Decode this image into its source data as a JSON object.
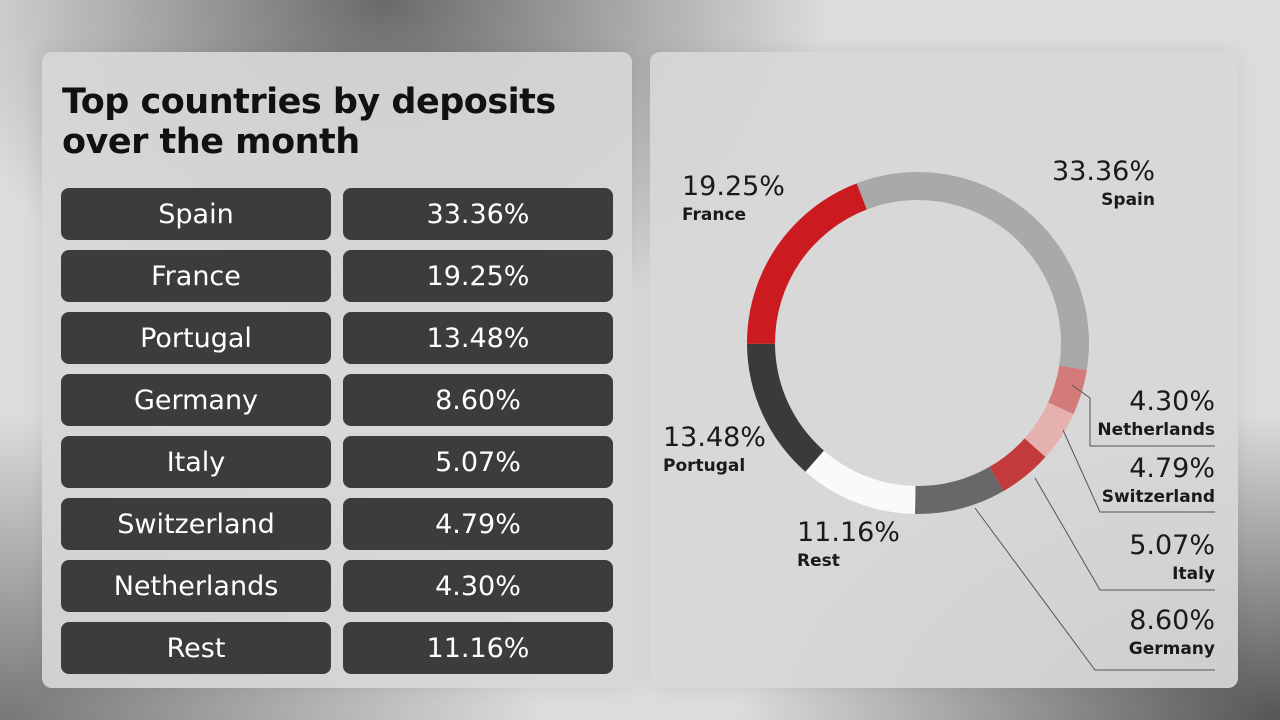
{
  "title": "Top countries by deposits over the month",
  "table": {
    "rows": [
      [
        "Spain",
        "33.36%"
      ],
      [
        "France",
        "19.25%"
      ],
      [
        "Portugal",
        "13.48%"
      ],
      [
        "Germany",
        "8.60%"
      ],
      [
        "Italy",
        "5.07%"
      ],
      [
        "Switzerland",
        "4.79%"
      ],
      [
        "Netherlands",
        "4.30%"
      ],
      [
        "Rest",
        "11.16%"
      ]
    ]
  },
  "chart_data": {
    "type": "donut",
    "categories": [
      "Spain",
      "Netherlands",
      "Switzerland",
      "Italy",
      "Germany",
      "Rest",
      "Portugal",
      "France"
    ],
    "values": [
      33.36,
      4.3,
      4.79,
      5.07,
      8.6,
      11.16,
      13.48,
      19.25
    ],
    "value_labels": [
      "33.36%",
      "4.30%",
      "4.79%",
      "5.07%",
      "8.60%",
      "11.16%",
      "13.48%",
      "19.25%"
    ],
    "colors": [
      "#a9a9a9",
      "#d27b79",
      "#e5b1af",
      "#c23a3c",
      "#686868",
      "#fafafa",
      "#3a3a3a",
      "#cc1b20"
    ]
  }
}
